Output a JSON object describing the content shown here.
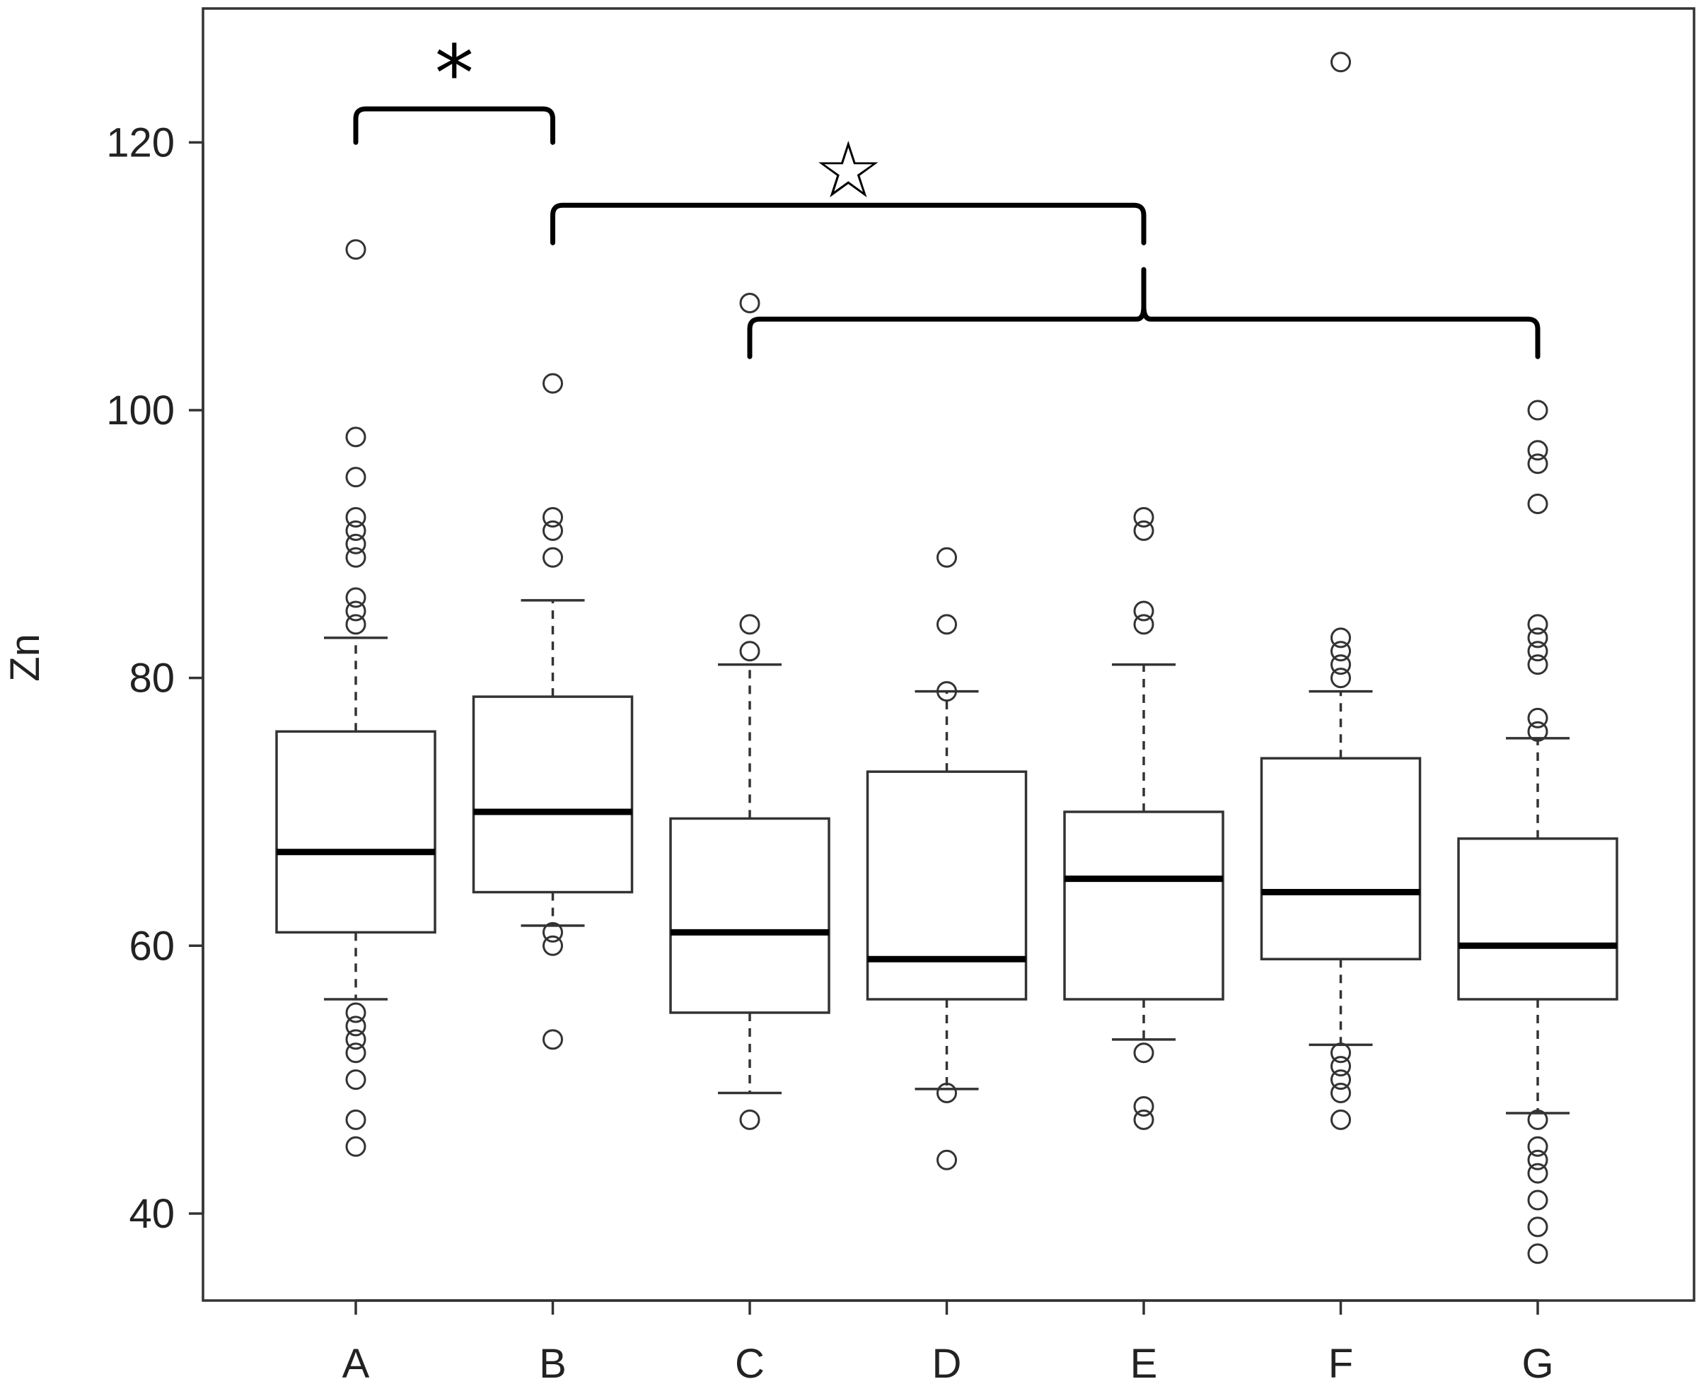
{
  "chart_data": {
    "type": "box",
    "ylabel": "Zn",
    "xlabel": "",
    "ylim": [
      33.5,
      130
    ],
    "yticks": [
      40,
      60,
      80,
      100,
      120
    ],
    "categories": [
      "A",
      "B",
      "C",
      "D",
      "E",
      "F",
      "G"
    ],
    "boxes": [
      {
        "category": "A",
        "whisker_low": 56,
        "q1": 61,
        "median": 67,
        "q3": 76,
        "whisker_high": 83,
        "outliers": [
          112,
          98,
          95,
          92,
          91,
          90,
          89,
          86,
          85,
          84,
          55,
          54,
          53,
          52,
          50,
          47,
          45
        ]
      },
      {
        "category": "B",
        "whisker_low": 61.5,
        "q1": 64,
        "median": 70,
        "q3": 78.6,
        "whisker_high": 85.8,
        "outliers": [
          102,
          92,
          91,
          89,
          61,
          60,
          53
        ]
      },
      {
        "category": "C",
        "whisker_low": 49,
        "q1": 55,
        "median": 61,
        "q3": 69.5,
        "whisker_high": 81,
        "outliers": [
          108,
          84,
          82,
          47
        ]
      },
      {
        "category": "D",
        "whisker_low": 49.3,
        "q1": 56,
        "median": 59,
        "q3": 73,
        "whisker_high": 79,
        "outliers": [
          89,
          84,
          79,
          49,
          44
        ]
      },
      {
        "category": "E",
        "whisker_low": 53,
        "q1": 56,
        "median": 65,
        "q3": 70,
        "whisker_high": 81,
        "outliers": [
          92,
          91,
          85,
          84,
          52,
          48,
          47
        ]
      },
      {
        "category": "F",
        "whisker_low": 52.6,
        "q1": 59,
        "median": 64,
        "q3": 74,
        "whisker_high": 79,
        "outliers": [
          126,
          83,
          82,
          81,
          80,
          52,
          51,
          50,
          49,
          47
        ]
      },
      {
        "category": "G",
        "whisker_low": 47.5,
        "q1": 56,
        "median": 60,
        "q3": 68,
        "whisker_high": 75.5,
        "outliers": [
          100,
          97,
          96,
          93,
          84,
          83,
          82,
          81,
          77,
          76,
          47,
          45,
          44,
          43,
          41,
          39,
          37
        ]
      }
    ],
    "annotations": [
      {
        "symbol": "*",
        "type": "bracket",
        "from": "A",
        "to": "B",
        "level": 122.5,
        "drop": 120.0
      },
      {
        "symbol": "☆",
        "type": "bracket",
        "from": "B",
        "to": "E",
        "level": 115.3,
        "drop": 112.5
      },
      {
        "type": "brace",
        "from": "C",
        "to": "G",
        "peak": "E",
        "level": 106.8,
        "drop": 104.0,
        "peak_top": 110.5
      }
    ]
  }
}
